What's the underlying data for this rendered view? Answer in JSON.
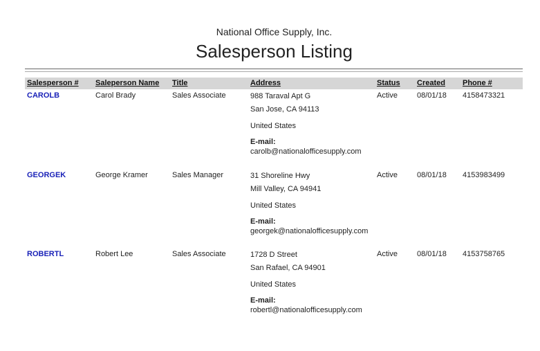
{
  "header": {
    "company": "National Office Supply, Inc.",
    "title": "Salesperson Listing"
  },
  "columns": [
    "Salesperson #",
    "Saleperson Name",
    "Title",
    "Address",
    "Status",
    "Created",
    "Phone #"
  ],
  "email_label": "E-mail:",
  "link_color": "#1a22b8",
  "rows": [
    {
      "id": "CAROLB",
      "name": "Carol Brady",
      "title": "Sales Associate",
      "address1": "988 Taraval Apt G",
      "address2": "San Jose, CA 94113",
      "country": "United States",
      "email": "carolb@nationalofficesupply.com",
      "status": "Active",
      "created": "08/01/18",
      "phone": "4158473321"
    },
    {
      "id": "GEORGEK",
      "name": "George Kramer",
      "title": "Sales Manager",
      "address1": "31 Shoreline Hwy",
      "address2": "Mill Valley, CA 94941",
      "country": "United States",
      "email": "georgek@nationalofficesupply.com",
      "status": "Active",
      "created": "08/01/18",
      "phone": "4153983499"
    },
    {
      "id": "ROBERTL",
      "name": "Robert Lee",
      "title": "Sales Associate",
      "address1": "1728 D Street",
      "address2": "San Rafael, CA 94901",
      "country": "United States",
      "email": "robertl@nationalofficesupply.com",
      "status": "Active",
      "created": "08/01/18",
      "phone": "4153758765"
    }
  ]
}
